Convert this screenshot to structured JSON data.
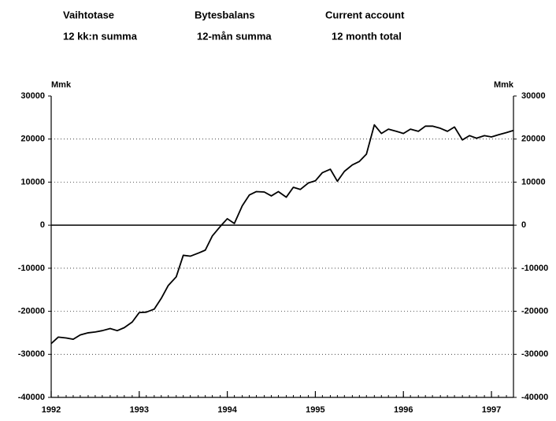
{
  "chart_data": {
    "type": "line",
    "titles": [
      [
        "Vaihtotase",
        "12 kk:n summa"
      ],
      [
        "Bytesbalans",
        "12-mån summa"
      ],
      [
        "Current account",
        "12 month total"
      ]
    ],
    "ylabel": "Mmk",
    "y2label": "Mmk",
    "x": [
      1992,
      1992.08,
      1992.17,
      1992.25,
      1992.33,
      1992.42,
      1992.5,
      1992.58,
      1992.67,
      1992.75,
      1992.83,
      1992.92,
      1993,
      1993.08,
      1993.17,
      1993.25,
      1993.33,
      1993.42,
      1993.5,
      1993.58,
      1993.67,
      1993.75,
      1993.83,
      1993.92,
      1994,
      1994.08,
      1994.17,
      1994.25,
      1994.33,
      1994.42,
      1994.5,
      1994.58,
      1994.67,
      1994.75,
      1994.83,
      1994.92,
      1995,
      1995.08,
      1995.17,
      1995.25,
      1995.33,
      1995.42,
      1995.5,
      1995.58,
      1995.67,
      1995.75,
      1995.83,
      1995.92,
      1996,
      1996.08,
      1996.17,
      1996.25,
      1996.33,
      1996.42,
      1996.5,
      1996.58,
      1996.67,
      1996.75,
      1996.83,
      1996.92,
      1997,
      1997.08,
      1997.17,
      1997.25
    ],
    "series": [
      {
        "name": "Current account",
        "color": "#000000",
        "values": [
          -27500,
          -26000,
          -26200,
          -26500,
          -25500,
          -25000,
          -24800,
          -24500,
          -24000,
          -24500,
          -23800,
          -22500,
          -20300,
          -20200,
          -19500,
          -17000,
          -14000,
          -12000,
          -7000,
          -7200,
          -6500,
          -5800,
          -2500,
          -300,
          1500,
          400,
          4500,
          7000,
          7800,
          7700,
          6800,
          7800,
          6500,
          8800,
          8300,
          9800,
          10300,
          12200,
          13000,
          10200,
          12500,
          14000,
          14800,
          16500,
          23300,
          21300,
          22300,
          21800,
          21300,
          22300,
          21800,
          23000,
          23000,
          22500,
          21800,
          22800,
          19800,
          20800,
          20200,
          20800,
          20500,
          21000,
          21500,
          22000
        ]
      }
    ],
    "xlim": [
      1992,
      1997.25
    ],
    "xticks": [
      1992,
      1993,
      1994,
      1995,
      1996,
      1997
    ],
    "ylim": [
      -40000,
      30000
    ],
    "yticks": [
      -40000,
      -30000,
      -20000,
      -10000,
      0,
      10000,
      20000,
      30000
    ],
    "grid": true
  }
}
